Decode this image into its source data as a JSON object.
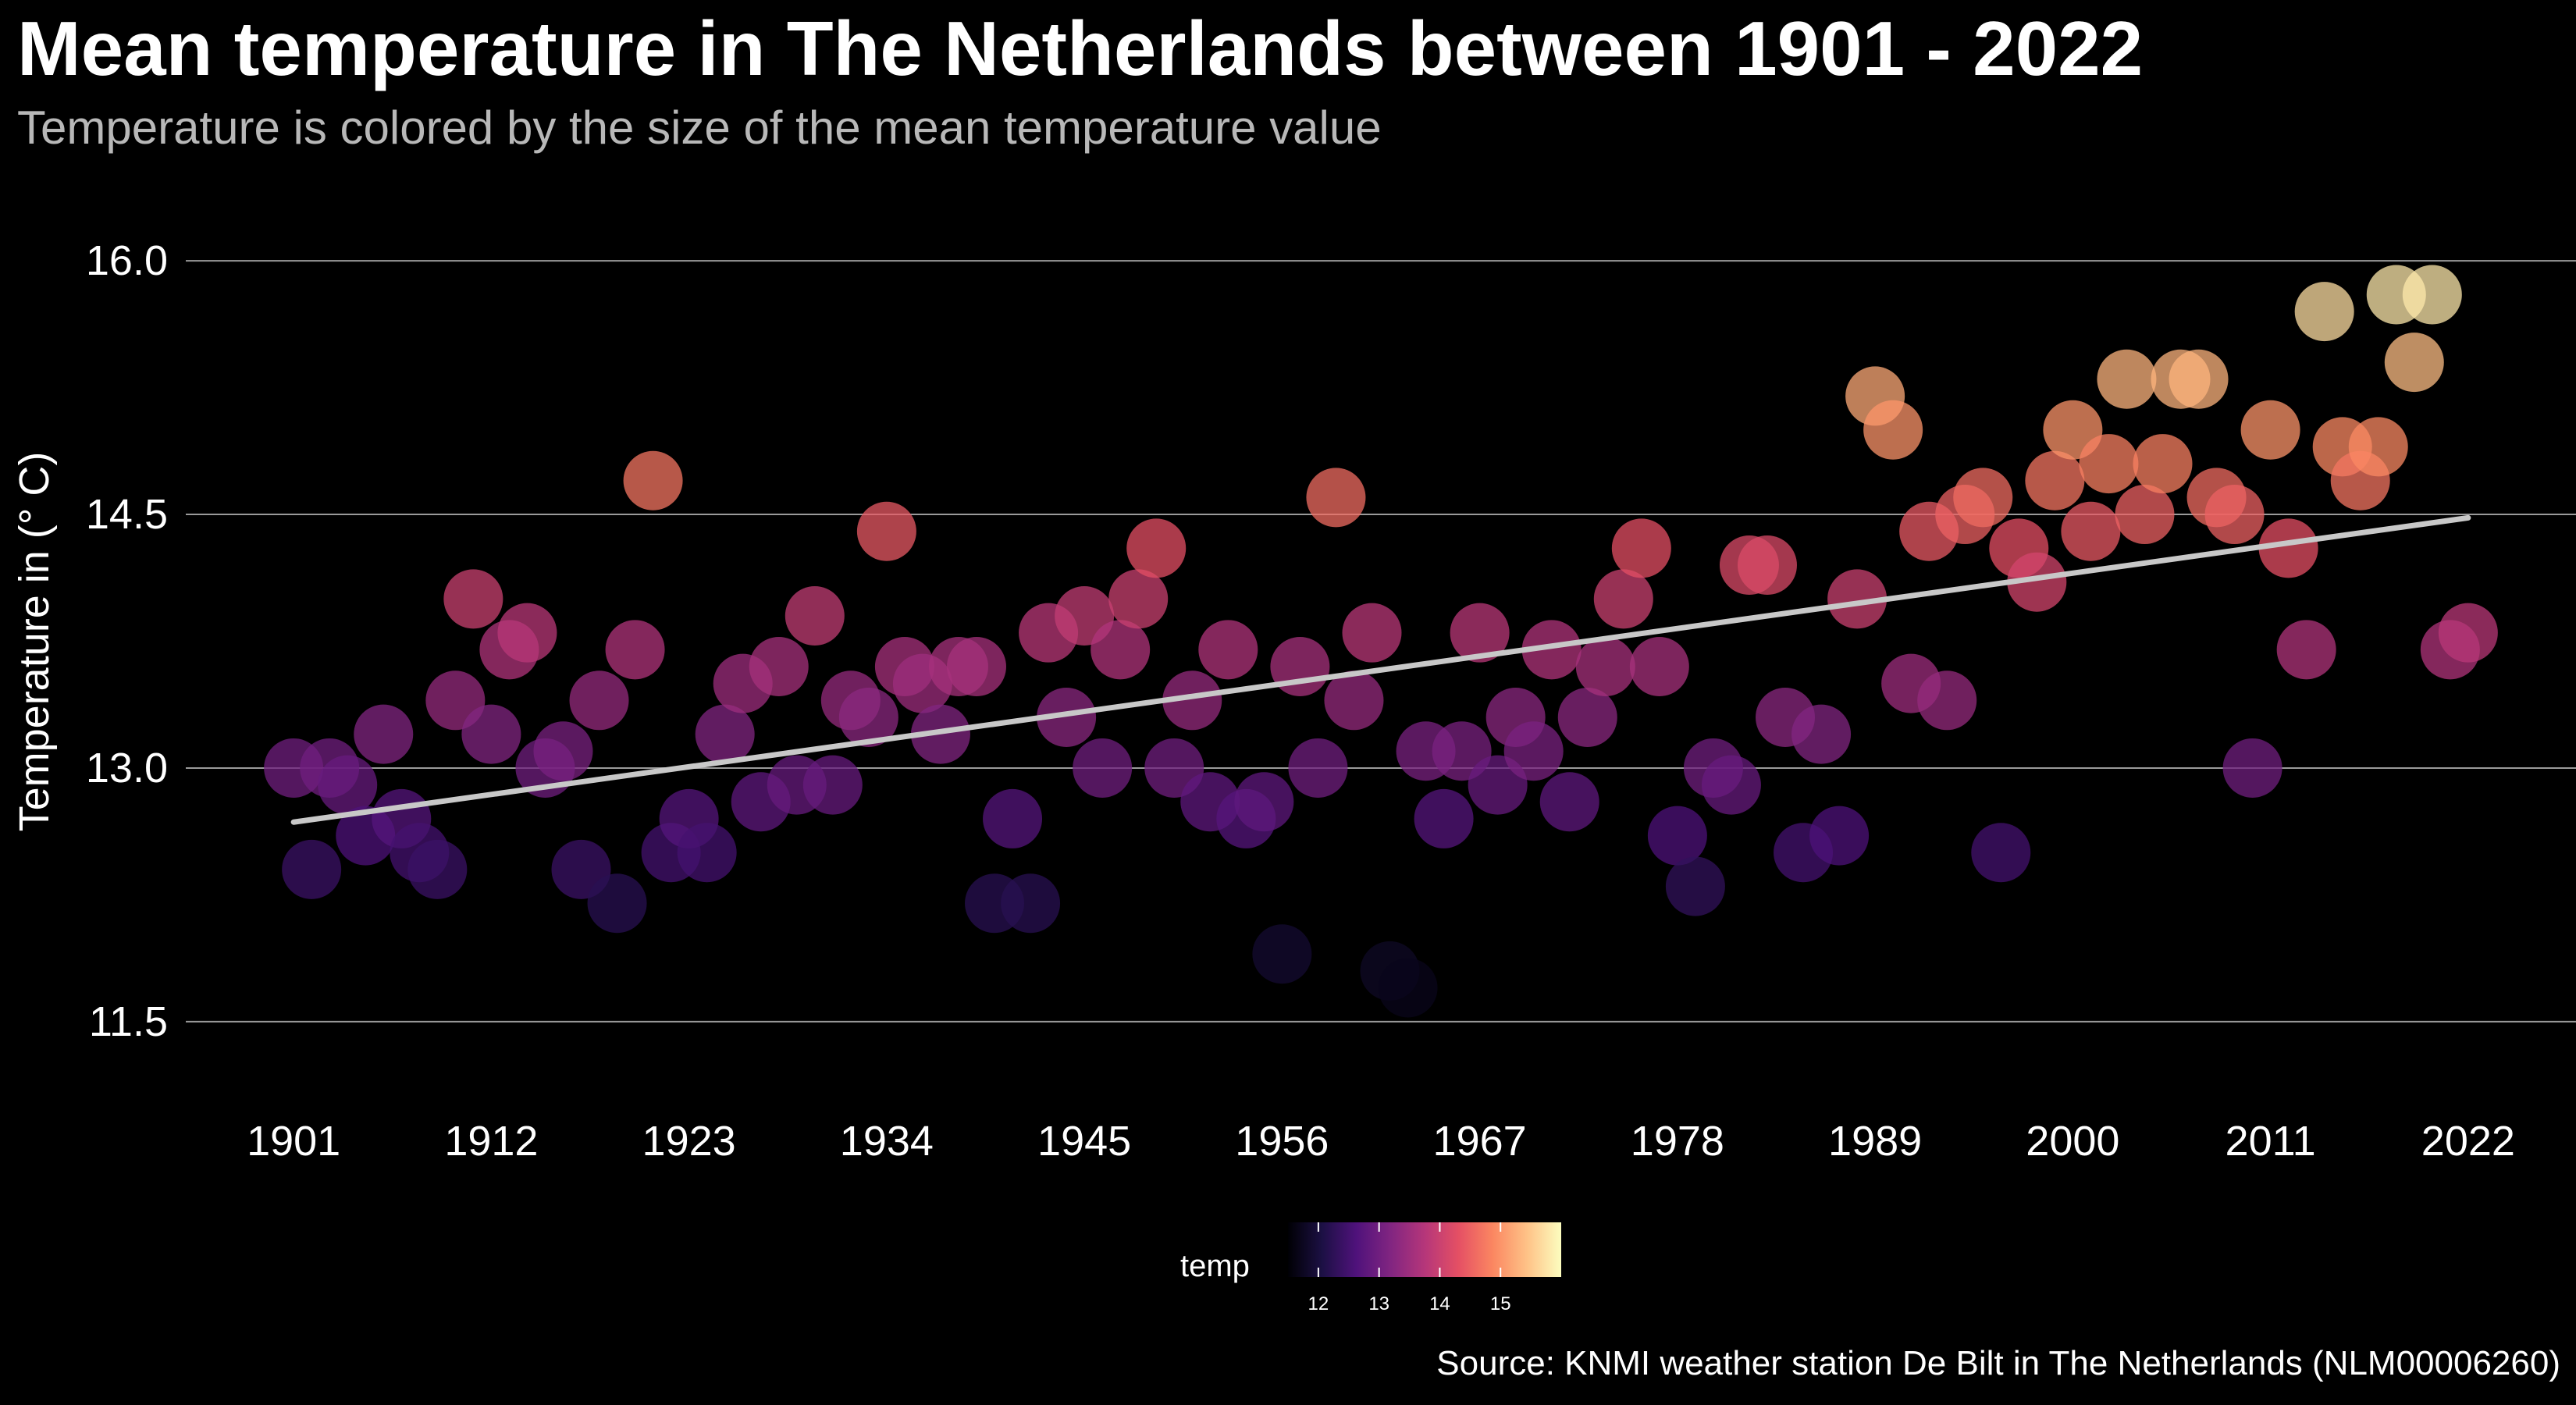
{
  "chart_data": {
    "type": "scatter",
    "title": "Mean temperature in The Netherlands between 1901 - 2022",
    "subtitle": "Temperature is colored by the size of the mean temperature value",
    "xlabel": "",
    "ylabel": "Temperature in (° C)",
    "xlim": [
      1895,
      2028
    ],
    "ylim": [
      11.25,
      16.25
    ],
    "x_ticks": [
      1901,
      1912,
      1923,
      1934,
      1945,
      1956,
      1967,
      1978,
      1989,
      2000,
      2011,
      2022
    ],
    "y_ticks": [
      "11.5",
      "13.0",
      "14.5",
      "16.0"
    ],
    "y_tick_values": [
      11.5,
      13.0,
      14.5,
      16.0
    ],
    "grid": "horizontal",
    "x": [
      1901,
      1902,
      1903,
      1904,
      1905,
      1906,
      1907,
      1908,
      1909,
      1910,
      1911,
      1912,
      1913,
      1914,
      1915,
      1916,
      1917,
      1918,
      1919,
      1920,
      1921,
      1922,
      1923,
      1924,
      1925,
      1926,
      1927,
      1928,
      1929,
      1930,
      1931,
      1932,
      1933,
      1934,
      1935,
      1936,
      1937,
      1938,
      1939,
      1940,
      1941,
      1942,
      1943,
      1944,
      1945,
      1946,
      1947,
      1948,
      1949,
      1950,
      1951,
      1952,
      1953,
      1954,
      1955,
      1956,
      1957,
      1958,
      1959,
      1960,
      1961,
      1962,
      1963,
      1964,
      1965,
      1966,
      1967,
      1968,
      1969,
      1970,
      1971,
      1972,
      1973,
      1974,
      1975,
      1976,
      1977,
      1978,
      1979,
      1980,
      1981,
      1982,
      1983,
      1984,
      1985,
      1986,
      1987,
      1988,
      1989,
      1990,
      1991,
      1992,
      1993,
      1994,
      1995,
      1996,
      1997,
      1998,
      1999,
      2000,
      2001,
      2002,
      2003,
      2004,
      2005,
      2006,
      2007,
      2008,
      2009,
      2010,
      2011,
      2012,
      2013,
      2014,
      2015,
      2016,
      2017,
      2018,
      2019,
      2020,
      2021,
      2022
    ],
    "values": [
      13.0,
      12.4,
      13.0,
      12.9,
      12.6,
      13.2,
      12.7,
      12.5,
      12.4,
      13.4,
      14.0,
      13.2,
      13.7,
      13.8,
      13.0,
      13.1,
      12.4,
      13.4,
      12.2,
      13.7,
      14.7,
      12.5,
      12.7,
      12.5,
      13.2,
      13.5,
      12.8,
      13.6,
      12.9,
      13.9,
      12.9,
      13.4,
      13.3,
      14.4,
      13.6,
      13.5,
      13.2,
      13.6,
      13.6,
      12.2,
      12.7,
      12.2,
      13.8,
      13.3,
      13.9,
      13.0,
      13.7,
      14.0,
      14.3,
      13.0,
      13.4,
      12.8,
      13.7,
      12.7,
      12.8,
      11.9,
      13.6,
      13.0,
      14.6,
      13.4,
      13.8,
      11.8,
      11.7,
      13.1,
      12.7,
      13.1,
      13.8,
      12.9,
      13.3,
      13.1,
      13.7,
      12.8,
      13.3,
      13.6,
      14.0,
      14.3,
      13.6,
      12.6,
      12.3,
      13.0,
      12.9,
      14.2,
      14.2,
      13.3,
      12.5,
      13.2,
      12.6,
      14.0,
      15.2,
      15.0,
      13.5,
      14.4,
      13.4,
      14.5,
      14.6,
      12.5,
      14.3,
      14.1,
      14.7,
      15.0,
      14.4,
      14.8,
      15.3,
      14.5,
      14.8,
      15.3,
      15.3,
      14.6,
      14.5,
      13.0,
      15.0,
      14.3,
      13.7,
      15.7,
      14.9,
      14.7,
      14.9,
      15.8,
      15.4,
      15.8,
      13.7,
      13.8
    ],
    "color_variable": "temp",
    "colorscale": [
      "#000004",
      "#1c1044",
      "#4f127b",
      "#812581",
      "#b5367a",
      "#e55064",
      "#fb8761",
      "#fec287",
      "#fcfdbf"
    ],
    "color_range": [
      11.5,
      16.0
    ],
    "point_opacity": 0.75,
    "trend_line": {
      "type": "linear",
      "x": [
        1901,
        2022
      ],
      "y": [
        12.68,
        14.48
      ],
      "color": "#c8c8c8"
    },
    "legend": {
      "title": "temp",
      "ticks": [
        "12",
        "13",
        "14",
        "15"
      ],
      "tick_values": [
        12,
        13,
        14,
        15
      ],
      "position": "bottom"
    },
    "caption": "Source: KNMI weather station De Bilt in The Netherlands (NLM00006260)",
    "colors": {
      "background": "#000000",
      "grid": "#9a9a9a",
      "text": "#ffffff",
      "subtitle": "#b8b8b8"
    }
  }
}
